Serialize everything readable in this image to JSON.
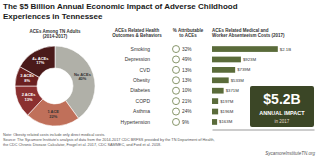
{
  "chart_data": [
    {
      "type": "pie",
      "title": "The $5 Billion Annual Economic Impact of Adverse Childhood\nExperiences in Tennessee",
      "subtitle": "ACEs Among TN Adults\n(2014-2017)",
      "categories": [
        "No ACEs",
        "1 ACE",
        "2 ACEs",
        "3 ACEs",
        "4+ ACEs"
      ],
      "values": [
        40,
        22,
        13,
        8,
        17
      ],
      "value_labels": [
        "40%",
        "22%",
        "13%",
        "8%",
        "17%"
      ],
      "colors": [
        "#b0b0a8",
        "#c0705a",
        "#8b3030",
        "#6b2020",
        "#4a1a1a"
      ],
      "data_labels": true,
      "annotations": [
        "Note: Obesity related costs include only direct medical costs.",
        "Source: The Sycamore Institute's analysis of data from the 2014-2017 CDC BRFSS provided by the TN Department of Health,",
        "the CDC Chronic Disease Calculator, Frogel et al. 2017, CDC SAMMEC, and Ford et al. 2018.",
        "SycamoreInstituteTN.org"
      ]
    },
    {
      "type": "table",
      "title": "ACEs Related Health\nOutcomes & Behaviors",
      "subtitle": "% Attributable\nto ACEs",
      "categories": [
        "Smoking",
        "Depression",
        "CVD",
        "Obesity",
        "Diabetes",
        "COPD",
        "Asthma",
        "Hypertension"
      ],
      "values": [
        32,
        49,
        13,
        13,
        10,
        21,
        24,
        9
      ],
      "value_labels": [
        "32%",
        "49%",
        "13%",
        "13%",
        "10%",
        "21%",
        "24%",
        "9%"
      ],
      "color": "#7a8a5a",
      "data_labels": true
    },
    {
      "type": "bar",
      "orientation": "horizontal",
      "title": "ACEs Related Medical and\nWorker Absenteeism Costs (2017)",
      "categories": [
        null,
        null,
        null,
        null,
        null,
        null,
        null,
        null
      ],
      "values": [
        2100,
        923,
        739,
        533,
        371,
        197,
        196,
        163
      ],
      "value_labels": [
        "$2.1B",
        "$923M",
        "$739M",
        "$533M",
        "$371M",
        "$197M",
        "$196M",
        "$163M"
      ],
      "color": "#5a6b3a",
      "xlim": [
        0,
        3255
      ],
      "tick_labels": false,
      "data_labels": true,
      "annotations": [
        "$5.2B",
        "ANNUAL IMPACT",
        "in 2017"
      ]
    }
  ]
}
